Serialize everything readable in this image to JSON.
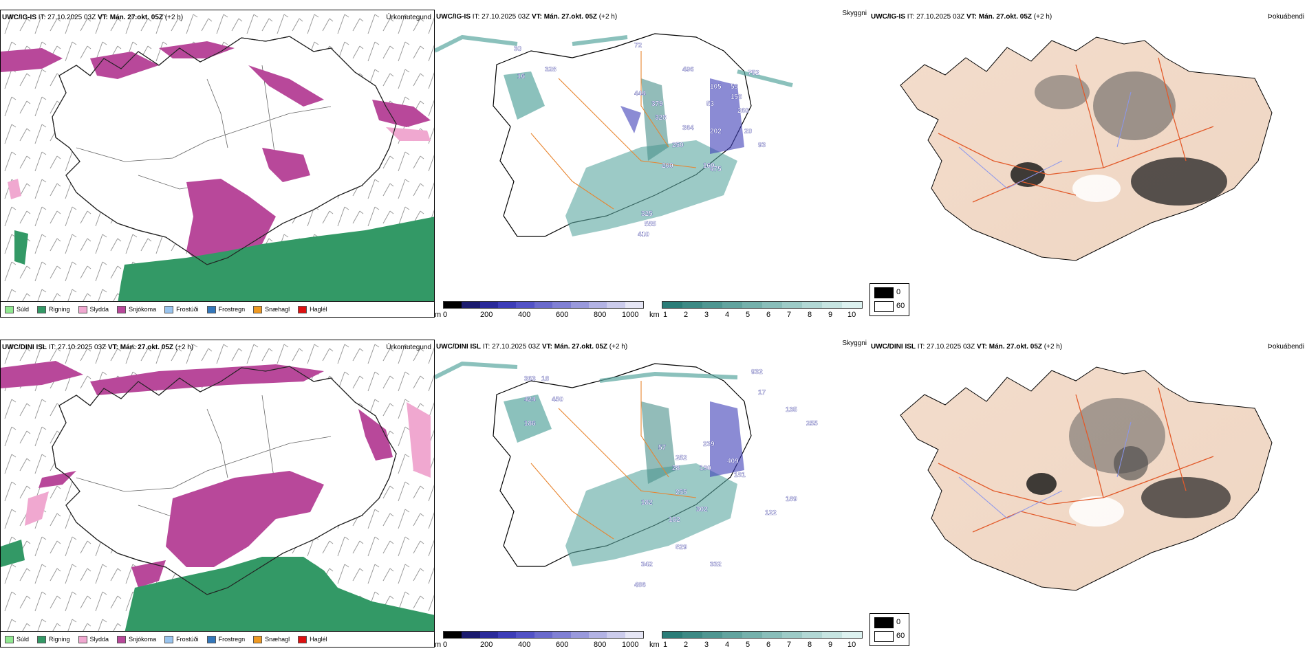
{
  "rows": [
    {
      "id": "top",
      "precip": {
        "title_model": "UWC/IG-IS",
        "title_it": "IT: 27.10.2025 03Z",
        "title_vt": "VT: Mán. 27.okt. 05Z",
        "title_step": "(+2 h)",
        "tag": "Úrkomutegund"
      },
      "cloud": {
        "title_model": "UWC/IG-IS",
        "title_it": "IT: 27.10.2025 03Z",
        "title_vt": "VT: Mán. 27.okt. 05Z",
        "title_step": "(+2 h)",
        "tag": "Skyggni",
        "labels": [
          "72",
          "496",
          "752",
          "105",
          "59",
          "156",
          "328",
          "444",
          "379",
          "53",
          "260",
          "328",
          "364",
          "202",
          "20",
          "250",
          "93",
          "160",
          "200",
          "475",
          "325",
          "555",
          "410",
          "30",
          "16"
        ]
      },
      "fog": {
        "title_model": "UWC/IG-IS",
        "title_it": "IT: 27.10.2025 03Z",
        "title_vt": "VT: Mán. 27.okt. 05Z",
        "title_step": "(+2 h)",
        "tag": "Þokuábendi"
      }
    },
    {
      "id": "bottom",
      "precip": {
        "title_model": "UWC/DINI ISL",
        "title_it": "IT: 27.10.2025 03Z",
        "title_vt": "VT: Mán. 27.okt. 05Z",
        "title_step": "(+2 h)",
        "tag": "Úrkomutegund"
      },
      "cloud": {
        "title_model": "UWC/DINI ISL",
        "title_it": "IT: 27.10.2025 03Z",
        "title_vt": "VT: Mán. 27.okt. 05Z",
        "title_step": "(+2 h)",
        "tag": "Skyggni",
        "labels": [
          "363",
          "18",
          "932",
          "424",
          "450",
          "17",
          "186",
          "135",
          "255",
          "57",
          "239",
          "252",
          "409",
          "28",
          "190",
          "181",
          "255",
          "182",
          "302",
          "189",
          "122",
          "182",
          "829",
          "342",
          "332",
          "486"
        ]
      },
      "fog": {
        "title_model": "UWC/DINI ISL",
        "title_it": "IT: 27.10.2025 03Z",
        "title_vt": "VT: Mán. 27.okt. 05Z",
        "title_step": "(+2 h)",
        "tag": "Þokuábendi"
      }
    }
  ],
  "precip_legend": [
    {
      "label": "Súld",
      "color": "#90e890"
    },
    {
      "label": "Rigning",
      "color": "#339966"
    },
    {
      "label": "Slydda",
      "color": "#f0a8d0"
    },
    {
      "label": "Snjókoma",
      "color": "#b8489a"
    },
    {
      "label": "Frostúði",
      "color": "#99c4ee"
    },
    {
      "label": "Frostregn",
      "color": "#3377bb"
    },
    {
      "label": "Snæhagl",
      "color": "#ee9922"
    },
    {
      "label": "Haglél",
      "color": "#dd1111"
    }
  ],
  "cloudbase_bar": {
    "unit": "m",
    "ticks": [
      "0",
      "200",
      "400",
      "600",
      "800",
      "1000"
    ],
    "colors": [
      "#000000",
      "#1b1b6e",
      "#2a2a9a",
      "#3d3db8",
      "#5252c6",
      "#6a6acc",
      "#8080d4",
      "#9999dc",
      "#b3b3e4",
      "#ccccec",
      "#e6e6f5"
    ]
  },
  "visibility_bar": {
    "unit": "km",
    "ticks": [
      "1",
      "2",
      "3",
      "4",
      "5",
      "6",
      "7",
      "8",
      "9",
      "10"
    ],
    "colors": [
      "#2b7d78",
      "#3d8a85",
      "#4f9792",
      "#62a49f",
      "#75b1ac",
      "#89beba",
      "#9dcbc7",
      "#b2d8d5",
      "#c7e5e2",
      "#ddf2f0"
    ]
  },
  "fog_legend": [
    {
      "label": "0",
      "color": "#000000"
    },
    {
      "label": "60",
      "color": "#ffffff"
    }
  ]
}
